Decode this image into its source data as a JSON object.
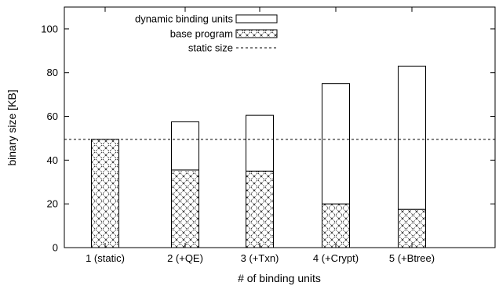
{
  "chart_data": {
    "type": "bar",
    "stacked": true,
    "xlabel": "# of binding units",
    "ylabel": "binary size [KB]",
    "ylim": [
      0,
      110
    ],
    "yticks": [
      0,
      20,
      40,
      60,
      80,
      100
    ],
    "categories": [
      "1 (static)",
      "2 (+QE)",
      "3 (+Txn)",
      "4 (+Crypt)",
      "5 (+Btree)"
    ],
    "series": [
      {
        "name": "base program",
        "pattern": "crosshatch",
        "values": [
          49.5,
          35.5,
          35,
          20,
          17.5
        ]
      },
      {
        "name": "dynamic binding units",
        "pattern": "empty",
        "values": [
          0,
          22,
          25.5,
          55,
          65.5
        ]
      }
    ],
    "reference_lines": [
      {
        "name": "static size",
        "style": "dashed",
        "value": 49.5
      }
    ],
    "legend": {
      "position": "top-center",
      "entries": [
        {
          "label": "dynamic binding units",
          "style": "empty"
        },
        {
          "label": "base program",
          "style": "crosshatch"
        },
        {
          "label": "static size",
          "style": "dashed"
        }
      ]
    },
    "grid": false
  }
}
